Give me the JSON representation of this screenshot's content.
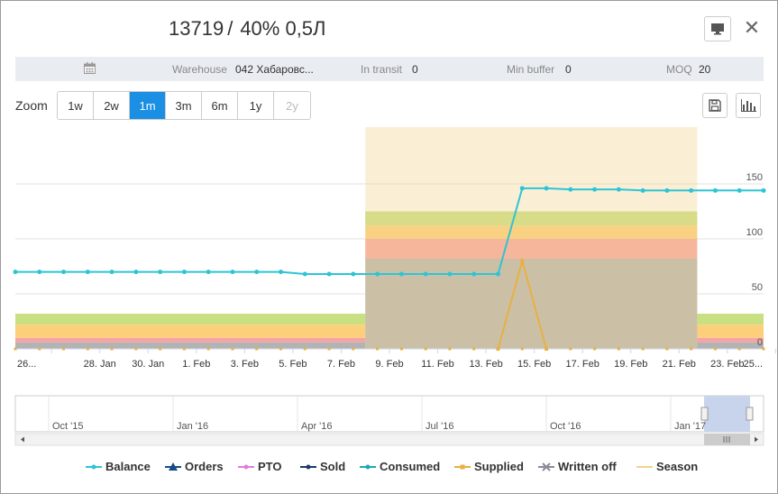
{
  "header": {
    "id": "13719",
    "separator": "/",
    "name": "40% 0,5Л"
  },
  "info": {
    "warehouse_label": "Warehouse",
    "warehouse_value": "042 Хабаровс...",
    "in_transit_label": "In transit",
    "in_transit_value": "0",
    "min_buffer_label": "Min buffer",
    "min_buffer_value": "0",
    "moq_label": "MOQ",
    "moq_value": "20"
  },
  "zoom": {
    "label": "Zoom",
    "options": [
      "1w",
      "2w",
      "1m",
      "3m",
      "6m",
      "1y",
      "2y"
    ],
    "active": "1m",
    "disabled": [
      "2y"
    ]
  },
  "icons": {
    "monitor": "monitor-icon",
    "close": "close-icon",
    "calendar": "calendar-icon",
    "save": "save-icon",
    "chart": "bar-chart-icon"
  },
  "chart_data": {
    "type": "line",
    "x_tick_labels": [
      "26...",
      "28. Jan",
      "30. Jan",
      "1. Feb",
      "3. Feb",
      "5. Feb",
      "7. Feb",
      "9. Feb",
      "11. Feb",
      "13. Feb",
      "15. Feb",
      "17. Feb",
      "19. Feb",
      "21. Feb",
      "23. Feb",
      "25..."
    ],
    "y_ticks": [
      0,
      50,
      100,
      150
    ],
    "ylim": [
      0,
      200
    ],
    "day_range": [
      -15.5,
      15.5
    ],
    "highlight_range": [
      -1,
      12.75
    ],
    "buffer_zones": {
      "outside": {
        "gray": 6,
        "red": 10,
        "orange": 22,
        "green": 32
      },
      "inside": {
        "gray": 82,
        "red": 100,
        "orange": 112,
        "green": 125
      }
    },
    "series": [
      {
        "name": "Balance",
        "color": "#2ec4d6",
        "values": [
          [
            -15.5,
            70
          ],
          [
            -14.5,
            70
          ],
          [
            -13.5,
            70
          ],
          [
            -12.5,
            70
          ],
          [
            -11.5,
            70
          ],
          [
            -10.5,
            70
          ],
          [
            -9.5,
            70
          ],
          [
            -8.5,
            70
          ],
          [
            -7.5,
            70
          ],
          [
            -6.5,
            70
          ],
          [
            -5.5,
            70
          ],
          [
            -4.5,
            70
          ],
          [
            -3.5,
            68
          ],
          [
            -2.5,
            68
          ],
          [
            -1.5,
            68
          ],
          [
            -0.5,
            68
          ],
          [
            0.5,
            68
          ],
          [
            1.5,
            68
          ],
          [
            2.5,
            68
          ],
          [
            3.5,
            68
          ],
          [
            4.5,
            68
          ],
          [
            5.5,
            146
          ],
          [
            6.5,
            146
          ],
          [
            7.5,
            145
          ],
          [
            8.5,
            145
          ],
          [
            9.5,
            145
          ],
          [
            10.5,
            144
          ],
          [
            11.5,
            144
          ],
          [
            12.5,
            144
          ],
          [
            13.5,
            144
          ],
          [
            14.5,
            144
          ],
          [
            15.5,
            144
          ]
        ]
      },
      {
        "name": "Supplied",
        "color": "#e8b040",
        "values": [
          [
            4.5,
            0
          ],
          [
            5.5,
            80
          ],
          [
            6.5,
            0
          ]
        ]
      },
      {
        "name": "Consumed",
        "color": "#1aa8b8",
        "values": []
      }
    ],
    "legend": [
      "Balance",
      "Orders",
      "PTO",
      "Sold",
      "Consumed",
      "Supplied",
      "Written off",
      "Season"
    ],
    "legend_colors": {
      "Balance": "#2ec4d6",
      "Orders": "#1a4a8a",
      "PTO": "#e07ed6",
      "Sold": "#1a3a6a",
      "Consumed": "#1aa8b8",
      "Supplied": "#e8b040",
      "Written off": "#8a8a9a",
      "Season": "#f3d490"
    },
    "navigator_labels": [
      "Oct '15",
      "Jan '16",
      "Apr '16",
      "Jul '16",
      "Oct '16",
      "Jan '17"
    ]
  }
}
